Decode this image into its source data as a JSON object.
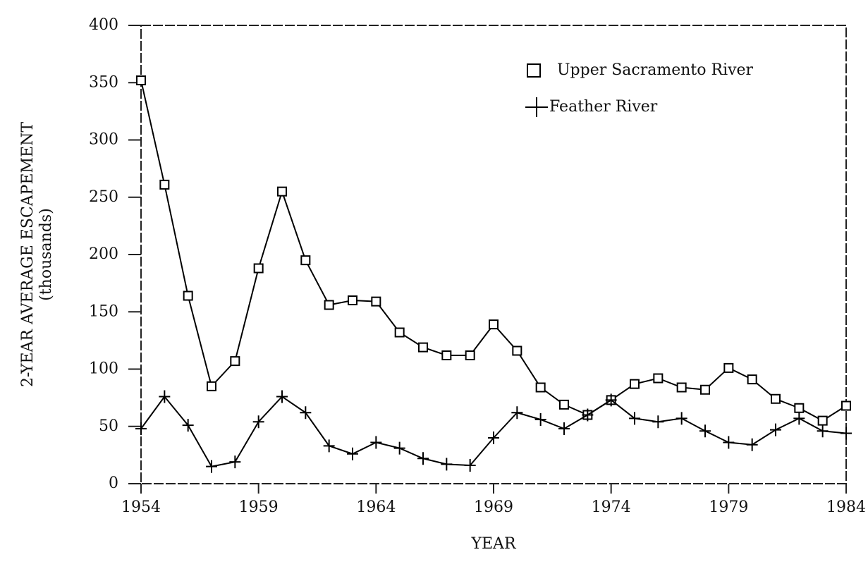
{
  "chart_data": {
    "type": "line",
    "xlabel": "YEAR",
    "ylabel": "2-YEAR AVERAGE ESCAPEMENT",
    "ylabel_unit": "(thousands)",
    "x": [
      1954,
      1955,
      1956,
      1957,
      1958,
      1959,
      1960,
      1961,
      1962,
      1963,
      1964,
      1965,
      1966,
      1967,
      1968,
      1969,
      1970,
      1971,
      1972,
      1973,
      1974,
      1975,
      1976,
      1977,
      1978,
      1979,
      1980,
      1981,
      1982,
      1983,
      1984
    ],
    "series": [
      {
        "name": "Upper Sacramento River",
        "color": "#000000",
        "marker": "square",
        "values": [
          352,
          261,
          164,
          85,
          107,
          188,
          255,
          195,
          156,
          160,
          159,
          132,
          119,
          112,
          112,
          139,
          116,
          84,
          69,
          60,
          73,
          87,
          92,
          84,
          82,
          101,
          91,
          74,
          66,
          55,
          68
        ]
      },
      {
        "name": "Feather River",
        "color": "#000000",
        "marker": "plus",
        "values": [
          48,
          76,
          51,
          15,
          19,
          54,
          76,
          62,
          33,
          26,
          36,
          31,
          22,
          17,
          16,
          40,
          62,
          56,
          48,
          60,
          73,
          57,
          54,
          57,
          46,
          36,
          34,
          47,
          57,
          46,
          44
        ]
      }
    ],
    "xlim": [
      1954,
      1984
    ],
    "xticks": [
      1954,
      1959,
      1964,
      1969,
      1974,
      1979,
      1984
    ],
    "ylim": [
      0,
      400
    ],
    "yticks": [
      0,
      50,
      100,
      150,
      200,
      250,
      300,
      350,
      400
    ],
    "grid": false,
    "legend": "upper-right"
  }
}
